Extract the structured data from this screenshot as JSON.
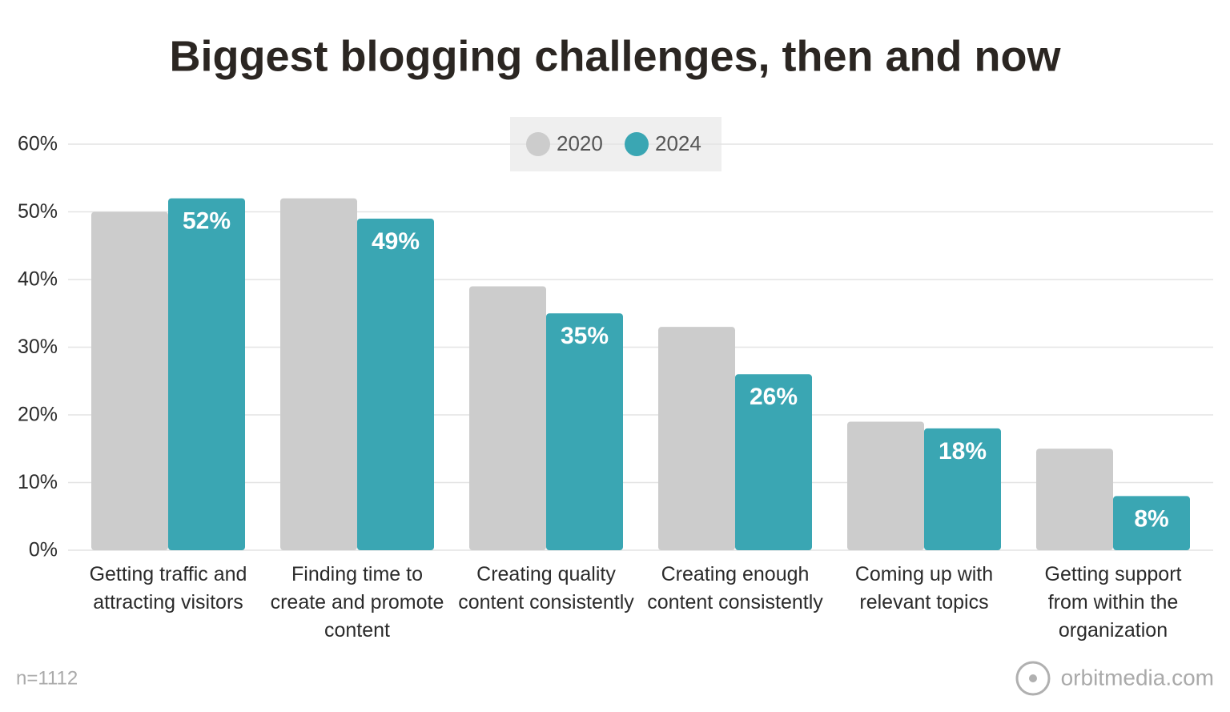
{
  "chart_data": {
    "type": "grouped-bar",
    "title": "Biggest blogging challenges, then and now",
    "categories": [
      "Getting traffic and attracting visitors",
      "Finding time to create and promote content",
      "Creating quality content consistently",
      "Creating enough content consistently",
      "Coming up with relevant topics",
      "Getting support from within the organization"
    ],
    "series": [
      {
        "name": "2020",
        "color": "#cccccc",
        "values": [
          50,
          52,
          39,
          33,
          19,
          15
        ]
      },
      {
        "name": "2024",
        "color": "#3aa6b3",
        "values": [
          52,
          49,
          35,
          26,
          18,
          8
        ],
        "value_labels": [
          "52%",
          "49%",
          "35%",
          "26%",
          "18%",
          "8%"
        ]
      }
    ],
    "ylim": [
      0,
      60
    ],
    "yticks": [
      {
        "value": 0,
        "label": "0%"
      },
      {
        "value": 10,
        "label": "10%"
      },
      {
        "value": 20,
        "label": "20%"
      },
      {
        "value": 30,
        "label": "30%"
      },
      {
        "value": 40,
        "label": "40%"
      },
      {
        "value": 50,
        "label": "50%"
      },
      {
        "value": 60,
        "label": "60%"
      }
    ],
    "grid": true,
    "legend": "top",
    "note": "n=1112",
    "source": "orbitmedia.com"
  }
}
